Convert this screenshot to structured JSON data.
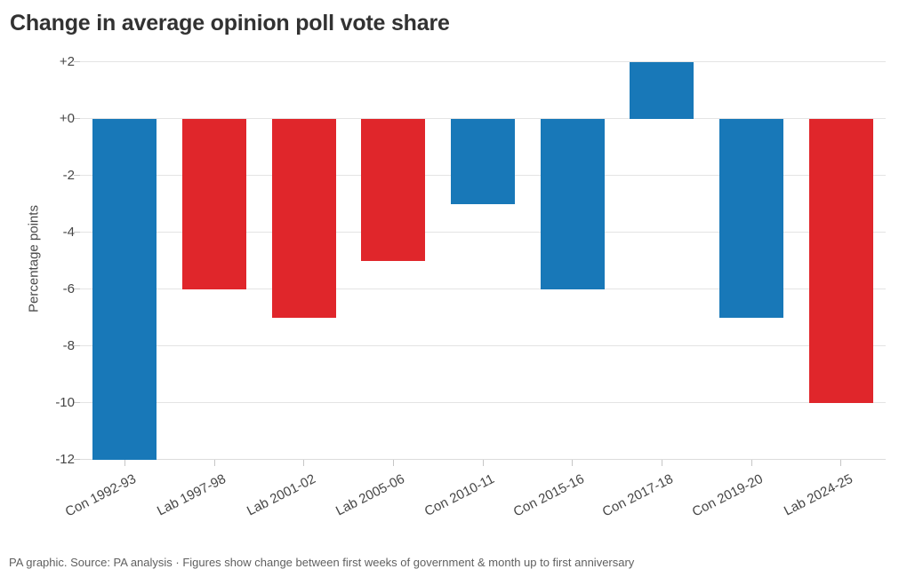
{
  "title": "Change in average opinion poll vote share",
  "footer": "PA graphic. Source: PA analysis · Figures show change between first weeks of government & month up to first anniversary",
  "colors": {
    "conservative_blue": "#1878b8",
    "labour_red": "#e0262b"
  },
  "chart_data": {
    "type": "bar",
    "title": "Change in average opinion poll vote share",
    "xlabel": "",
    "ylabel": "Percentage points",
    "categories": [
      "Con 1992-93",
      "Lab 1997-98",
      "Lab 2001-02",
      "Lab 2005-06",
      "Con 2010-11",
      "Con 2015-16",
      "Con 2017-18",
      "Con 2019-20",
      "Lab 2024-25"
    ],
    "values": [
      -12,
      -6,
      -7,
      -5,
      -3,
      -6,
      2,
      -7,
      -10
    ],
    "parties": [
      "con",
      "lab",
      "lab",
      "lab",
      "con",
      "con",
      "con",
      "con",
      "lab"
    ],
    "palette": {
      "con": "#1878b8",
      "lab": "#e0262b"
    },
    "ylim": [
      -12,
      2
    ],
    "ytick_values": [
      2,
      0,
      -2,
      -4,
      -6,
      -8,
      -10,
      -12
    ],
    "ytick_labels": [
      "+2",
      "+0",
      "-2",
      "-4",
      "-6",
      "-8",
      "-10",
      "-12"
    ],
    "grid": true,
    "legend_position": "none"
  }
}
